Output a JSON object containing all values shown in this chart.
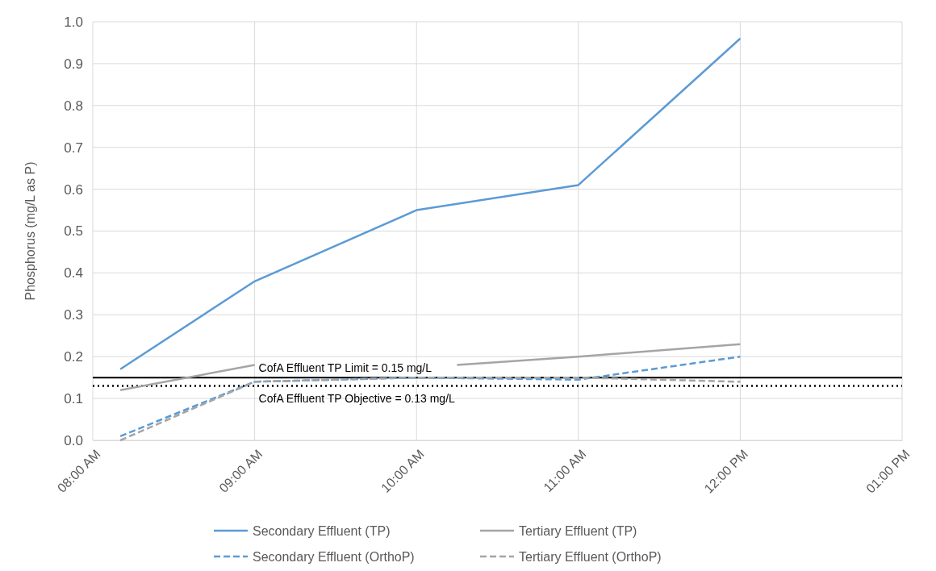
{
  "chart_data": {
    "type": "line",
    "ylabel": "Phosphorus (mg/L as P)",
    "xlim": [
      8,
      13
    ],
    "xticks": [
      {
        "value": 8,
        "label": "08:00 AM"
      },
      {
        "value": 9,
        "label": "09:00 AM"
      },
      {
        "value": 10,
        "label": "10:00 AM"
      },
      {
        "value": 11,
        "label": "11:00 AM"
      },
      {
        "value": 12,
        "label": "12:00 PM"
      },
      {
        "value": 13,
        "label": "01:00 PM"
      }
    ],
    "ylim": [
      0,
      1
    ],
    "yticks": [
      {
        "value": 0,
        "label": "0.0"
      },
      0.1,
      0.2,
      0.3,
      0.4,
      0.5,
      0.6,
      0.7,
      0.8,
      0.9,
      {
        "value": 1,
        "label": "1.0"
      }
    ],
    "grid": true,
    "legend": "bottom",
    "series": [
      {
        "name": "Secondary Effluent (TP)",
        "color": "#5b9bd5",
        "line_style": "solid",
        "x": [
          8.17,
          9,
          10,
          11,
          12
        ],
        "values": [
          0.17,
          0.38,
          0.55,
          0.61,
          0.96
        ]
      },
      {
        "name": "Tertiary Effluent (TP)",
        "color": "#a5a5a5",
        "line_style": "solid",
        "x": [
          8.17,
          9,
          10,
          10.25,
          11,
          12
        ],
        "values": [
          0.12,
          0.18,
          null,
          0.18,
          0.2,
          0.23
        ]
      },
      {
        "name": "Secondary Effluent (OrthoP)",
        "color": "#5b9bd5",
        "line_style": "dashed",
        "x": [
          8.17,
          9,
          10,
          11,
          12
        ],
        "values": [
          0.01,
          0.14,
          0.15,
          0.145,
          0.2
        ]
      },
      {
        "name": "Tertiary Effluent (OrthoP)",
        "color": "#a5a5a5",
        "line_style": "dashed",
        "x": [
          8.17,
          9,
          10,
          11,
          12
        ],
        "values": [
          0.0,
          0.14,
          0.15,
          0.15,
          0.14
        ]
      }
    ],
    "ref_lines": [
      {
        "axis": "y",
        "value": 0.15,
        "label": "CofA Effluent TP Limit = 0.15 mg/L",
        "color": "#000000",
        "line_style": "solid"
      },
      {
        "axis": "y",
        "value": 0.13,
        "label": "CofA Effluent TP Objective = 0.13 mg/L",
        "color": "#000000",
        "line_style": "dotted"
      }
    ]
  }
}
